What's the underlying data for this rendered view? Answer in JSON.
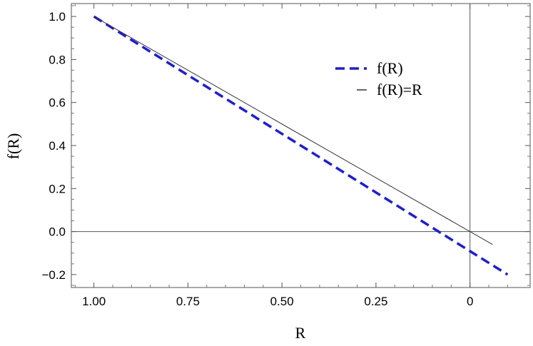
{
  "chart_data": {
    "type": "line",
    "title": "",
    "xlabel": "R",
    "ylabel": "f(R)",
    "x_reversed": true,
    "xlim": [
      1.06,
      -0.16
    ],
    "ylim": [
      -0.26,
      1.06
    ],
    "x_ticks": [
      {
        "value": 1.0,
        "label": "1.00"
      },
      {
        "value": 0.75,
        "label": "0.75"
      },
      {
        "value": 0.5,
        "label": "0.50"
      },
      {
        "value": 0.25,
        "label": "0.25"
      },
      {
        "value": 0.0,
        "label": "0"
      }
    ],
    "y_ticks": [
      {
        "value": -0.2,
        "label": "−0.2"
      },
      {
        "value": 0.0,
        "label": "0.0"
      },
      {
        "value": 0.2,
        "label": "0.2"
      },
      {
        "value": 0.4,
        "label": "0.4"
      },
      {
        "value": 0.6,
        "label": "0.6"
      },
      {
        "value": 0.8,
        "label": "0.8"
      },
      {
        "value": 1.0,
        "label": "1.0"
      }
    ],
    "grid": false,
    "legend_position": "top-right",
    "series": [
      {
        "name": "f(R)",
        "style": "dashed",
        "color": "#1a1aee",
        "x": [
          1.0,
          -0.1
        ],
        "y": [
          1.0,
          -0.2
        ]
      },
      {
        "name": "f(R)=R",
        "style": "solid",
        "color": "#333333",
        "x": [
          1.0,
          -0.06
        ],
        "y": [
          1.0,
          -0.06
        ]
      }
    ]
  }
}
